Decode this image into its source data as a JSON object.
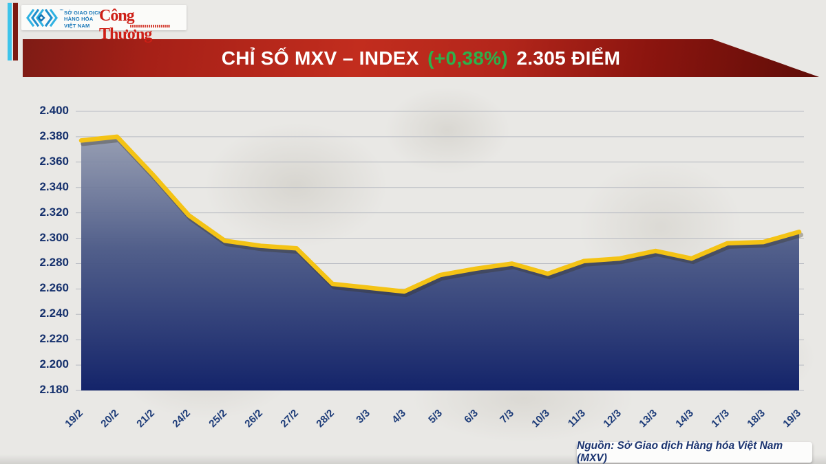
{
  "page": {
    "background_color": "#e9e8e5"
  },
  "header": {
    "mxv_logo": {
      "icon": "mxv-diamond-chevrons-icon",
      "trademark": "™",
      "text_lines": [
        "SỞ GIAO DỊCH",
        "HÀNG HÓA",
        "VIỆT NAM"
      ],
      "color": "#1877b8"
    },
    "congthuong_logo": {
      "text": "Công Thương",
      "color": "#ce1f16"
    }
  },
  "banner": {
    "title_prefix": "CHỈ SỐ MXV – INDEX",
    "change": "(+0,38%)",
    "title_suffix": "2.305 ĐIỂM",
    "text_color": "#ffffff",
    "change_color": "#2db14b",
    "background_color": "#b3261b"
  },
  "chart_data": {
    "type": "area",
    "title": "CHỈ SỐ MXV – INDEX",
    "x_labels": [
      "19/2",
      "20/2",
      "21/2",
      "24/2",
      "25/2",
      "26/2",
      "27/2",
      "28/2",
      "3/3",
      "4/3",
      "5/3",
      "6/3",
      "7/3",
      "10/3",
      "11/3",
      "12/3",
      "13/3",
      "14/3",
      "17/3",
      "18/3",
      "19/3"
    ],
    "values": [
      2377,
      2380,
      2350,
      2318,
      2298,
      2294,
      2292,
      2264,
      2261,
      2258,
      2271,
      2276,
      2280,
      2272,
      2282,
      2284,
      2290,
      2284,
      2296,
      2297,
      2305
    ],
    "ylim": [
      2180,
      2400
    ],
    "y_tick_step": 20,
    "y_tick_labels": [
      "2.400",
      "2.380",
      "2.360",
      "2.340",
      "2.320",
      "2.300",
      "2.280",
      "2.260",
      "2.240",
      "2.220",
      "2.200",
      "2.180"
    ],
    "grid": "horizontal",
    "legend": "none",
    "line_color": "#f4c315",
    "area_gradient": [
      "#8e96ad",
      "#4d5b88",
      "#14246a"
    ],
    "axis_label_color": "#16316d",
    "last_value_display": "2.305"
  },
  "footer": {
    "source": "Nguồn: Sở Giao dịch Hàng hóa Việt Nam (MXV)"
  }
}
